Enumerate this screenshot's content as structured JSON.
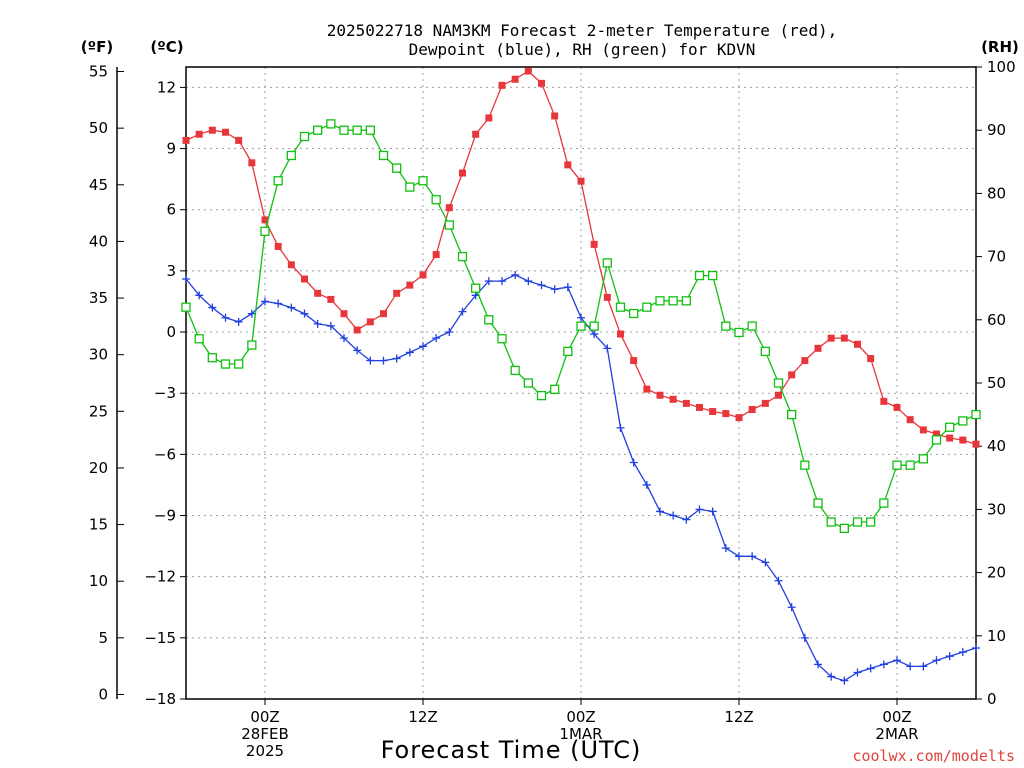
{
  "title_line1": "2025022718 NAM3KM Forecast 2-meter Temperature (red),",
  "title_line2": "Dewpoint (blue), RH (green) for KDVN",
  "units": {
    "f": "(ºF)",
    "c": "(ºC)",
    "rh": "(RH)"
  },
  "xlabel": "Forecast Time (UTC)",
  "credit": "coolwx.com/modelts",
  "colors": {
    "temperature": "#e8373c",
    "dewpoint": "#2040e0",
    "rh": "#10c010"
  },
  "chart_data": {
    "type": "line",
    "title": "2025022718 NAM3KM Forecast 2-meter Temperature (red), Dewpoint (blue), RH (green) for KDVN",
    "xlabel": "Forecast Time (UTC)",
    "x_unit": "hours from 2025-02-27 18Z",
    "xlim": [
      0,
      60
    ],
    "x_ticks": [
      {
        "x": 6,
        "label": [
          "00Z",
          "28FEB",
          "2025"
        ]
      },
      {
        "x": 18,
        "label": [
          "12Z"
        ]
      },
      {
        "x": 30,
        "label": [
          "00Z",
          "1MAR"
        ]
      },
      {
        "x": 42,
        "label": [
          "12Z"
        ]
      },
      {
        "x": 54,
        "label": [
          "00Z",
          "2MAR"
        ]
      }
    ],
    "y_left_c": {
      "label": "(ºC)",
      "ylim": [
        -18,
        13
      ],
      "ticks": [
        12,
        9,
        6,
        3,
        0,
        -3,
        -6,
        -9,
        -12,
        -15,
        -18
      ]
    },
    "y_left_f": {
      "label": "(ºF)",
      "ticks": [
        55,
        50,
        45,
        40,
        35,
        30,
        25,
        20,
        15,
        10,
        5,
        0
      ]
    },
    "y_right_rh": {
      "label": "(RH)",
      "ylim": [
        0,
        100
      ],
      "ticks": [
        100,
        90,
        80,
        70,
        60,
        50,
        40,
        30,
        20,
        10,
        0
      ]
    },
    "grid": true,
    "series": [
      {
        "axis": "celsius",
        "marker": "filled-square",
        "x": [
          0,
          1,
          2,
          3,
          4,
          5,
          6,
          7,
          8,
          9,
          10,
          11,
          12,
          13,
          14,
          15,
          16,
          17,
          18,
          19,
          20,
          21,
          22,
          23,
          24,
          25,
          26,
          27,
          28,
          29,
          30,
          31,
          32,
          33,
          34,
          35,
          36,
          37,
          38,
          39,
          40,
          41,
          42,
          43,
          44,
          45,
          46,
          47,
          48,
          49,
          50,
          51,
          52,
          53,
          54,
          55,
          56,
          57,
          58,
          59,
          60
        ],
        "values": [
          9.4,
          9.7,
          9.9,
          9.8,
          9.4,
          8.3,
          5.5,
          4.2,
          3.3,
          2.6,
          1.9,
          1.6,
          0.9,
          0.1,
          0.5,
          0.9,
          1.9,
          2.3,
          2.8,
          3.8,
          6.1,
          7.8,
          9.7,
          10.5,
          12.1,
          12.4,
          12.8,
          12.2,
          10.6,
          8.2,
          7.4,
          4.3,
          1.7,
          -0.1,
          -1.4,
          -2.8,
          -3.1,
          -3.3,
          -3.5,
          -3.7,
          -3.9,
          -4.0,
          -4.2,
          -3.8,
          -3.5,
          -3.1,
          -2.1,
          -1.4,
          -0.8,
          -0.3,
          -0.3,
          -0.6,
          -1.3,
          -3.4,
          -3.7,
          -4.3,
          -4.8,
          -5.0,
          -5.2,
          -5.3,
          -5.5
        ]
      },
      {
        "axis": "celsius",
        "marker": "plus",
        "x": [
          0,
          1,
          2,
          3,
          4,
          5,
          6,
          7,
          8,
          9,
          10,
          11,
          12,
          13,
          14,
          15,
          16,
          17,
          18,
          19,
          20,
          21,
          22,
          23,
          24,
          25,
          26,
          27,
          28,
          29,
          30,
          31,
          32,
          33,
          34,
          35,
          36,
          37,
          38,
          39,
          40,
          41,
          42,
          43,
          44,
          45,
          46,
          47,
          48,
          49,
          50,
          51,
          52,
          53,
          54,
          55,
          56,
          57,
          58,
          59,
          60
        ],
        "values": [
          2.6,
          1.8,
          1.2,
          0.7,
          0.5,
          0.9,
          1.5,
          1.4,
          1.2,
          0.9,
          0.4,
          0.3,
          -0.3,
          -0.9,
          -1.4,
          -1.4,
          -1.3,
          -1.0,
          -0.7,
          -0.3,
          0.0,
          1.0,
          1.8,
          2.5,
          2.5,
          2.8,
          2.5,
          2.3,
          2.1,
          2.2,
          0.7,
          -0.1,
          -0.8,
          -4.7,
          -6.4,
          -7.5,
          -8.8,
          -9.0,
          -9.2,
          -8.7,
          -8.8,
          -10.6,
          -11.0,
          -11.0,
          -11.3,
          -12.2,
          -13.5,
          -15.0,
          -16.3,
          -16.9,
          -17.1,
          -16.7,
          -16.5,
          -16.3,
          -16.1,
          -16.4,
          -16.4,
          -16.1,
          -15.9,
          -15.7,
          -15.5
        ]
      },
      {
        "axis": "rh",
        "marker": "open-square",
        "x": [
          0,
          1,
          2,
          3,
          4,
          5,
          6,
          7,
          8,
          9,
          10,
          11,
          12,
          13,
          14,
          15,
          16,
          17,
          18,
          19,
          20,
          21,
          22,
          23,
          24,
          25,
          26,
          27,
          28,
          29,
          30,
          31,
          32,
          33,
          34,
          35,
          36,
          37,
          38,
          39,
          40,
          41,
          42,
          43,
          44,
          45,
          46,
          47,
          48,
          49,
          50,
          51,
          52,
          53,
          54,
          55,
          56,
          57,
          58,
          59,
          60
        ],
        "values": [
          62,
          57,
          54,
          53,
          53,
          56,
          74,
          82,
          86,
          89,
          90,
          91,
          90,
          90,
          90,
          86,
          84,
          81,
          82,
          79,
          75,
          70,
          65,
          60,
          57,
          52,
          50,
          48,
          49,
          55,
          59,
          59,
          69,
          62,
          61,
          62,
          63,
          63,
          63,
          67,
          67,
          59,
          58,
          59,
          55,
          50,
          45,
          37,
          31,
          28,
          27,
          28,
          28,
          31,
          37,
          37,
          38,
          41,
          43,
          44,
          45
        ]
      }
    ]
  }
}
